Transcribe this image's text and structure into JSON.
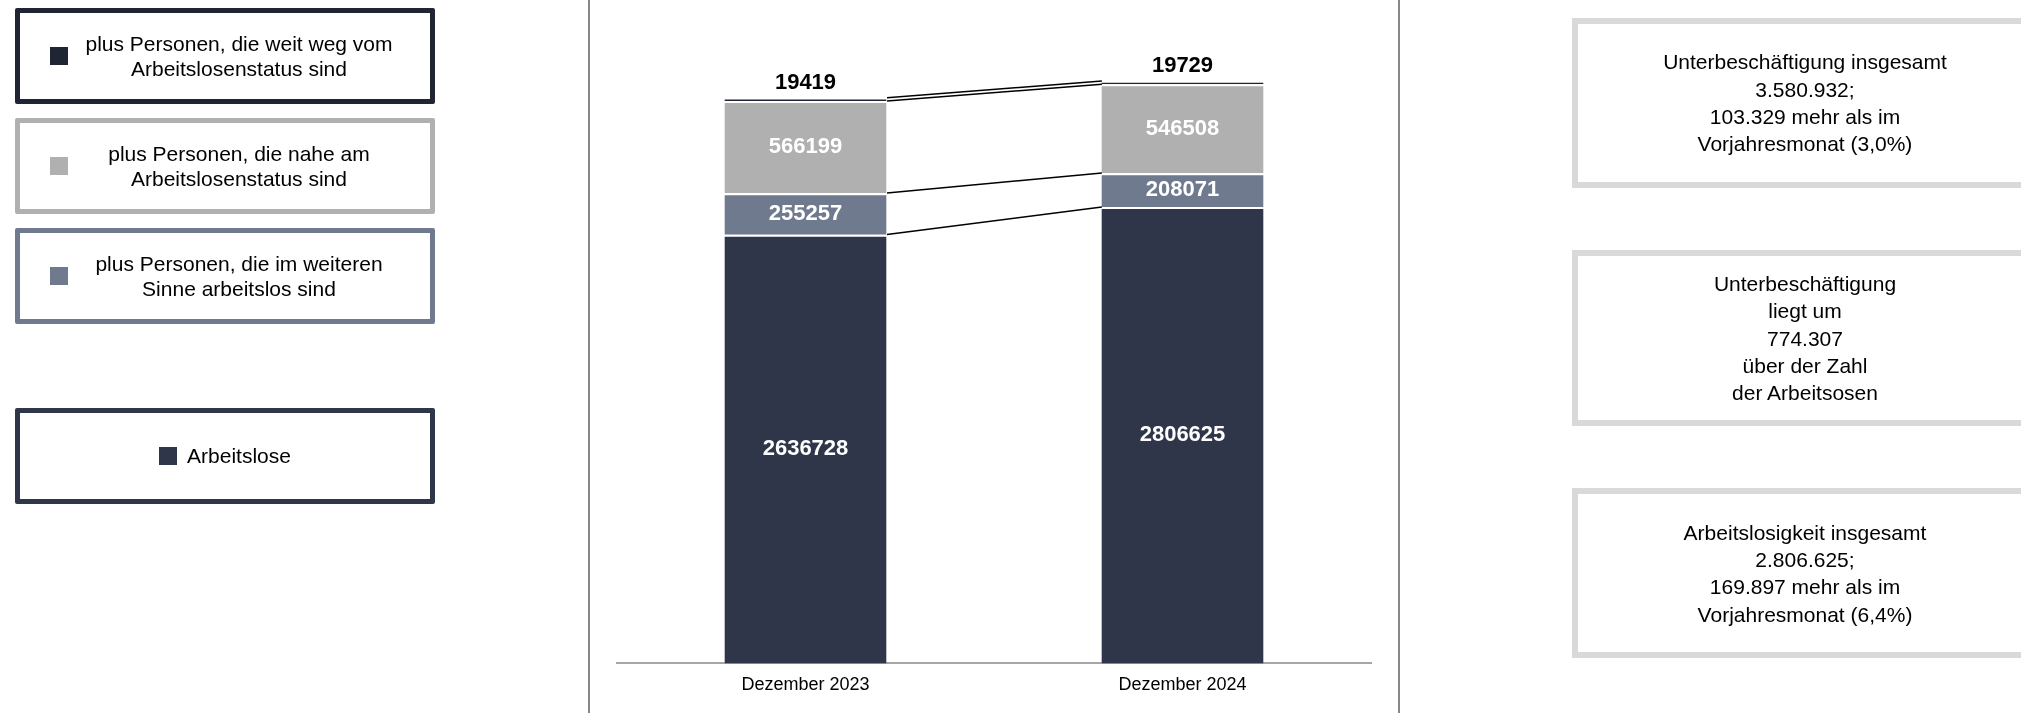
{
  "chart_data": {
    "type": "bar",
    "stacked": true,
    "data_labels": true,
    "legend": "left",
    "categories": [
      "Dezember 2023",
      "Dezember 2024"
    ],
    "series": [
      {
        "name": "Arbeitslose",
        "color": "#2f3649",
        "values": [
          2636728,
          2806625
        ]
      },
      {
        "name": "plus Personen, die im weiteren Sinne arbeitslos sind",
        "color": "#6f7a8f",
        "values": [
          255257,
          208071
        ]
      },
      {
        "name": "plus Personen, die  nahe am Arbeitslosenstatus sind",
        "color": "#b0b0b0",
        "values": [
          566199,
          546508
        ]
      },
      {
        "name": "plus Personen, die weit weg vom Arbeitslosenstatus sind",
        "color": "#1f2533",
        "values": [
          19419,
          19729
        ]
      }
    ],
    "annotations": [
      "Unterbeschäftigung insgesamt\n3.580.932;\n103.329 mehr als im\nVorjahresmonat (3,0%)",
      "Unterbeschäftigung\nliegt um\n774.307\nüber der Zahl\nder Arbeitsosen",
      "Arbeitslosigkeit insgesamt\n2.806.625;\n169.897 mehr als im\nVorjahresmonat (6,4%)"
    ]
  }
}
